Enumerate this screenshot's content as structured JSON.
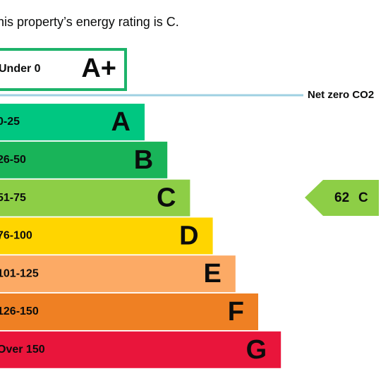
{
  "header": {
    "text": "his property’s energy rating is C."
  },
  "top_band": {
    "range": "Under 0",
    "letter": "A+",
    "color": "#1db36a"
  },
  "net_zero": {
    "label": "Net zero CO2",
    "color": "#9fd0e2"
  },
  "bands": [
    {
      "range": "0-25",
      "letter": "A",
      "color": "#00c781"
    },
    {
      "range": "26-50",
      "letter": "B",
      "color": "#19b459"
    },
    {
      "range": "51-75",
      "letter": "C",
      "color": "#8dce46"
    },
    {
      "range": "76-100",
      "letter": "D",
      "color": "#ffd500"
    },
    {
      "range": "101-125",
      "letter": "E",
      "color": "#fcaa65"
    },
    {
      "range": "126-150",
      "letter": "F",
      "color": "#ef8023"
    },
    {
      "range": "Over 150",
      "letter": "G",
      "color": "#e9153b"
    }
  ],
  "current": {
    "score": "62",
    "letter": "C",
    "color": "#8dce46"
  }
}
